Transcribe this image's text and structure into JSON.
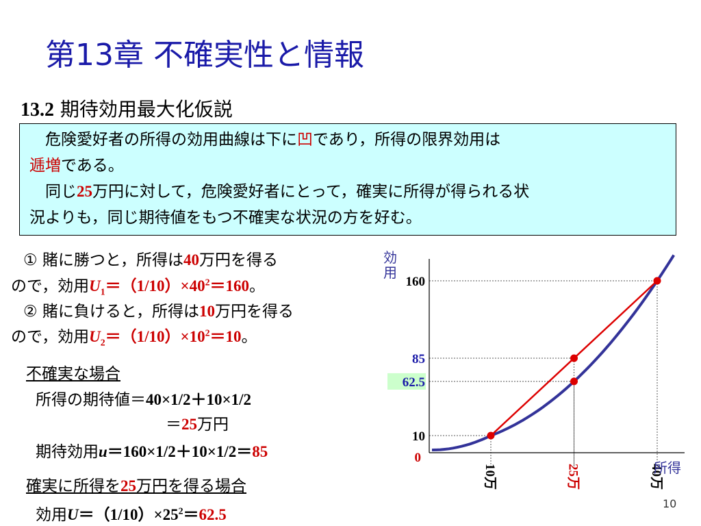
{
  "slide": {
    "title": "第13章 不確実性と情報",
    "section_number": "13.2",
    "section_title": " 期待効用最大化仮説",
    "page_number": "10"
  },
  "box": {
    "l1a": "　危険愛好者の所得の効用曲線は下に",
    "l1b": "凹",
    "l1c": "であり，所得の限界効用は",
    "l2a": "逓増",
    "l2b": "である。",
    "l3a": "　同じ",
    "l3b": "25",
    "l3c": "万円に対して，危険愛好者にとって，確実に所得が得られる状",
    "l4": "況よりも，同じ期待値をもつ不確実な状況の方を好む。"
  },
  "left": {
    "c1a": "①  賭に勝つと，所得は",
    "c1b": "40",
    "c1c": "万円を得る",
    "c2a": "ので，効用",
    "c2b": "U",
    "c2c": "1",
    "c2d": "＝（1/10）×40",
    "c2e": "2",
    "c2f": "＝160",
    "c2g": "。",
    "c3a": "② 賭に負けると，所得は",
    "c3b": "10",
    "c3c": "万円を得る",
    "c4a": "ので，効用",
    "c4b": "U",
    "c4c": "2",
    "c4d": "＝（1/10）×10",
    "c4e": "2",
    "c4f": "＝10",
    "c4g": "。",
    "unc_head": "不確実な場合",
    "ev1a": "所得の期待値＝",
    "ev1b": "40×1/2＋10×1/2",
    "ev2a": "＝",
    "ev2b": "25",
    "ev2c": "万円",
    "eu_a": "期待効用",
    "eu_b": "u",
    "eu_c": "＝160×1/2＋10×1/2＝",
    "eu_d": "85",
    "cert_a": "確実に所得を",
    "cert_b": "25",
    "cert_c": "万円を得る場合",
    "cu_a": "効用",
    "cu_b": "U",
    "cu_c": "＝（1/10）×25",
    "cu_d": "2",
    "cu_e": "＝",
    "cu_f": "62.5"
  },
  "chart_data": {
    "type": "line",
    "curve_function": "U = (1/10) × x^2",
    "x_label": "所得",
    "y_label_chars": [
      "効",
      "用"
    ],
    "x_ticks": [
      {
        "value": 10,
        "label": "10万",
        "color": "#000000"
      },
      {
        "value": 25,
        "label": "25万",
        "color": "#cc0000"
      },
      {
        "value": 40,
        "label": "40万",
        "color": "#000000"
      }
    ],
    "y_ticks": [
      {
        "value": 160,
        "label": "160",
        "color": "#000000"
      },
      {
        "value": 85,
        "label": "85",
        "color": "#1a1aa8"
      },
      {
        "value": 62.5,
        "label": "62.5",
        "color": "#1a1aa8"
      },
      {
        "value": 10,
        "label": "10",
        "color": "#000000"
      },
      {
        "value": 0,
        "label": "0",
        "color": "#cc0000"
      }
    ],
    "chord": [
      [
        10,
        10
      ],
      [
        40,
        160
      ]
    ],
    "points": [
      [
        10,
        10
      ],
      [
        25,
        85
      ],
      [
        25,
        62.5
      ],
      [
        40,
        160
      ]
    ],
    "colors": {
      "curve": "#333399",
      "chord": "#dd0000",
      "point": "#dd0000",
      "label_bg_62_5": "#ccffcc"
    }
  }
}
